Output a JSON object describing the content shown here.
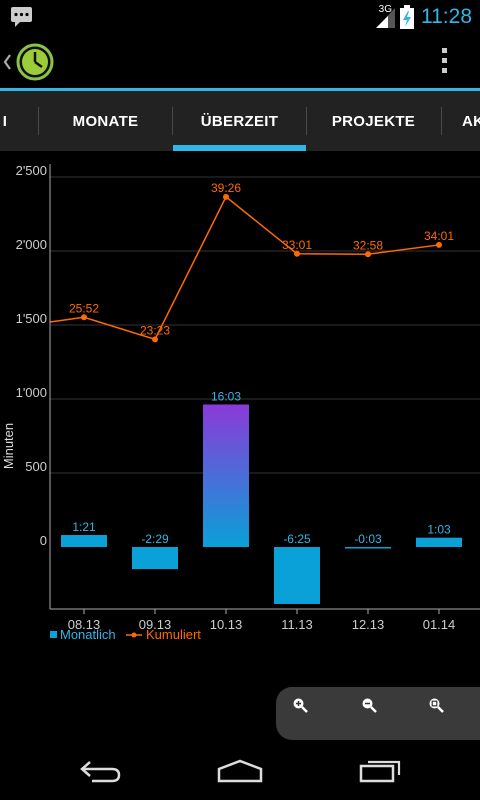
{
  "status_bar": {
    "time": "11:28",
    "network": "3G"
  },
  "tabs": [
    {
      "label": "I"
    },
    {
      "label": "MONATE"
    },
    {
      "label": "ÜBERZEIT",
      "selected": true
    },
    {
      "label": "PROJEKTE"
    },
    {
      "label": "AK"
    }
  ],
  "colors": {
    "accent": "#33b5e5",
    "cumulative": "#ff6a00",
    "bar": "#0aa0d8",
    "bar_top": "#8a3ad8"
  },
  "chart_data": {
    "type": "bar",
    "ylabel": "Minuten",
    "ylim": [
      -400,
      2550
    ],
    "yticks": [
      "0",
      "500",
      "1'000",
      "1'500",
      "2'000",
      "2'500"
    ],
    "categories": [
      "08.13",
      "09.13",
      "10.13",
      "11.13",
      "12.13",
      "01.14"
    ],
    "series": [
      {
        "name": "Monatlich",
        "type": "bar",
        "values": [
          81,
          -149,
          963,
          -385,
          -3,
          63
        ],
        "labels": [
          "1:21",
          "-2:29",
          "16:03",
          "-6:25",
          "-0:03",
          "1:03"
        ]
      },
      {
        "name": "Kumuliert",
        "type": "line",
        "values": [
          1552,
          1403,
          2366,
          1981,
          1978,
          2041
        ],
        "labels": [
          "25:52",
          "23:23",
          "39:26",
          "33:01",
          "32:58",
          "34:01"
        ]
      }
    ],
    "legend": "bottom-left",
    "grid": true
  }
}
